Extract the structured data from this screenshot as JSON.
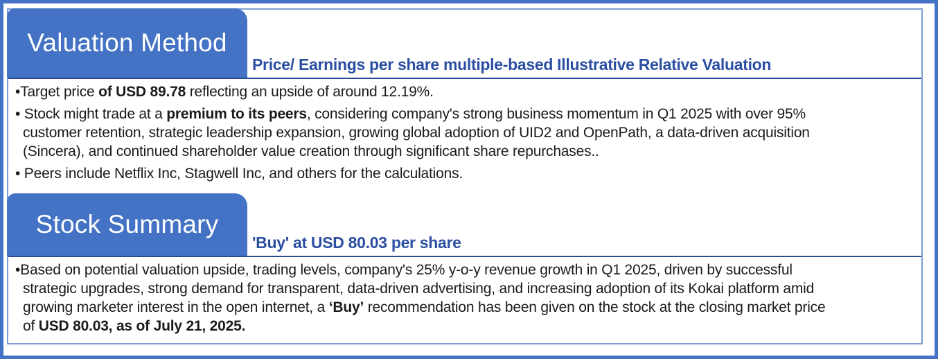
{
  "page": {
    "outer_border_color": "#4472C4",
    "tab_fill_color": "#4472C4",
    "divider_color": "#2A4A96",
    "subtitle_color": "#2B4EA2"
  },
  "sections": [
    {
      "tab_label": "Valuation Method",
      "subtitle": "Price/ Earnings per share multiple-based Illustrative Relative Valuation",
      "bullets": [
        {
          "parts": [
            {
              "text": "•Target price ",
              "bold": false
            },
            {
              "text": "of USD 89.78",
              "bold": true
            },
            {
              "text": " reflecting an upside of around 12.19%.",
              "bold": false
            }
          ]
        },
        {
          "parts": [
            {
              "text": "• Stock might trade at a ",
              "bold": false
            },
            {
              "text": "premium to its peers",
              "bold": true
            },
            {
              "text": ", considering company's strong business momentum in Q1 2025 with over 95%\ncustomer retention, strategic leadership expansion, growing global adoption of UID2 and OpenPath, a data-driven acquisition\n(Sincera), and continued shareholder value creation through significant share repurchases..",
              "bold": false
            }
          ]
        },
        {
          "parts": [
            {
              "text": "• Peers include Netflix Inc, Stagwell Inc, and others for the calculations.",
              "bold": false
            }
          ]
        }
      ]
    },
    {
      "tab_label": "Stock Summary",
      "subtitle": "'Buy' at USD 80.03 per share",
      "bullets": [
        {
          "parts": [
            {
              "text": "•Based on potential valuation upside, trading levels, company's 25% y-o-y revenue growth in Q1 2025, driven by successful\nstrategic upgrades, strong demand for transparent, data-driven advertising, and increasing adoption of its Kokai platform amid\ngrowing marketer interest in the open internet, a ",
              "bold": false
            },
            {
              "text": "‘Buy’",
              "bold": true
            },
            {
              "text": " recommendation has been given on the stock at the closing market price\nof ",
              "bold": false
            },
            {
              "text": "USD 80.03, as of July 21, 2025.",
              "bold": true
            }
          ]
        }
      ]
    }
  ]
}
